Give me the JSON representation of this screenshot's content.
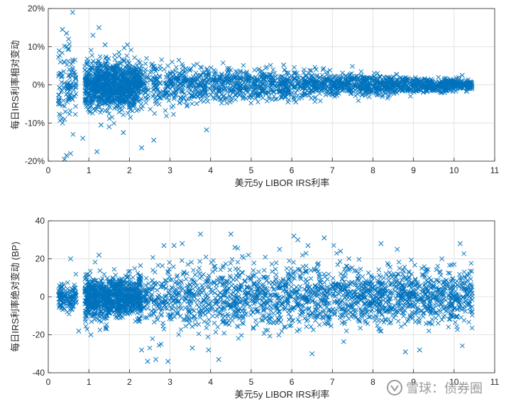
{
  "chart_data": [
    {
      "type": "scatter",
      "xlabel": "美元5y LIBOR IRS利率",
      "ylabel": "每日IRS利率相对变动",
      "xlim": [
        0,
        11
      ],
      "ylim": [
        -20,
        20
      ],
      "x_ticks": [
        0,
        1,
        2,
        3,
        4,
        5,
        6,
        7,
        8,
        9,
        10,
        11
      ],
      "y_ticks": [
        -20,
        -10,
        0,
        10,
        20
      ],
      "y_tick_labels": [
        "-20%",
        "-10%",
        "0%",
        "10%",
        "20%"
      ],
      "grid": true,
      "marker": "x",
      "color": "#0072BD",
      "series": [
        {
          "x": [
            0.6,
            0.35,
            0.45,
            0.5,
            1.1,
            1.25,
            0.55,
            0.4,
            0.45,
            0.3,
            0.35,
            0.85,
            0.3,
            0.25,
            2.3,
            2.6,
            1.85,
            1.2,
            0.5,
            0.45,
            0.4,
            1.95,
            3.9,
            5.8,
            6.1,
            6.6,
            10.2,
            1.4,
            1.5,
            1.3
          ],
          "y": [
            19.0,
            14.5,
            13.5,
            12.0,
            13.0,
            15.0,
            -18.0,
            -19.5,
            -18.5,
            -8.0,
            -10.0,
            -14.0,
            6.0,
            -5.0,
            -16.5,
            -14.5,
            -12.5,
            -17.5,
            9.5,
            10.0,
            -9.0,
            10.5,
            -11.8,
            5.2,
            -4.5,
            4.0,
            2.5,
            10.5,
            -11.0,
            -10.5
          ]
        }
      ]
    },
    {
      "type": "scatter",
      "xlabel": "美元5y LIBOR IRS利率",
      "ylabel": "每日IRS利率绝对变动 (BP)",
      "xlim": [
        0,
        11
      ],
      "ylim": [
        -40,
        40
      ],
      "x_ticks": [
        0,
        1,
        2,
        3,
        4,
        5,
        6,
        7,
        8,
        9,
        10,
        11
      ],
      "y_ticks": [
        -40,
        -20,
        0,
        20,
        40
      ],
      "y_tick_labels": [
        "-40",
        "-20",
        "0",
        "20",
        "40"
      ],
      "grid": true,
      "marker": "x",
      "color": "#0072BD",
      "series": [
        {
          "x": [
            3.75,
            4.5,
            6.05,
            6.15,
            6.8,
            3.3,
            3.1,
            2.95,
            2.65,
            2.45,
            2.3,
            8.2,
            8.6,
            8.8,
            9.7,
            10.15,
            4.2,
            3.95,
            3.55,
            4.6,
            5.7,
            6.4,
            7.2,
            9.15,
            2.85,
            0.55,
            0.75,
            1.05,
            1.25,
            6.5
          ],
          "y": [
            33.0,
            33.0,
            32.0,
            30.0,
            31.0,
            28.0,
            27.0,
            -34.0,
            -33.0,
            -34.0,
            -28.0,
            28.0,
            25.0,
            -29.0,
            20.0,
            28.0,
            -33.0,
            -28.0,
            -27.0,
            26.0,
            25.0,
            27.0,
            24.0,
            -28.0,
            27.0,
            20.0,
            -18.0,
            -20.0,
            22.0,
            -30.0
          ]
        }
      ]
    }
  ],
  "watermark": {
    "text": "雪球：债券圈"
  }
}
